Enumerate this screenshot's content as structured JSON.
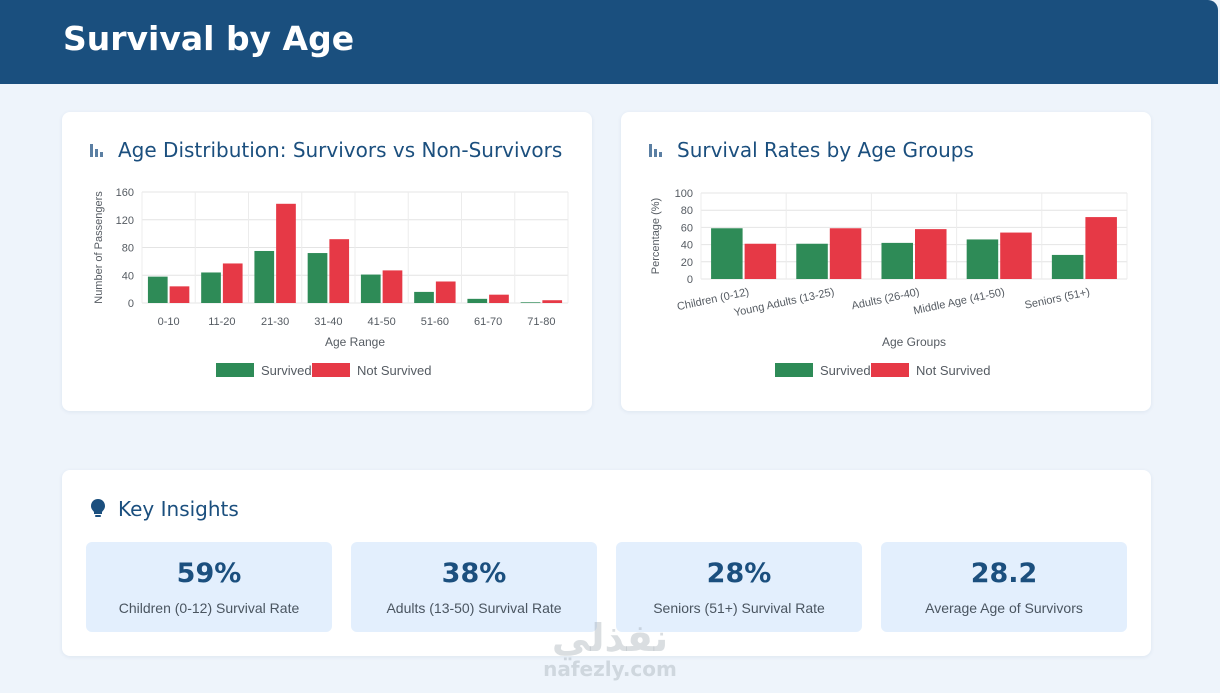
{
  "page": {
    "title": "Survival by Age"
  },
  "charts": {
    "age_distribution": {
      "title": "Age Distribution: Survivors vs Non-Survivors",
      "icon": "bar-chart-icon"
    },
    "age_groups": {
      "title": "Survival Rates by Age Groups",
      "icon": "bar-chart-icon"
    }
  },
  "insights": {
    "title": "Key Insights",
    "icon": "lightbulb-icon",
    "stats": [
      {
        "value": "59%",
        "label": "Children (0-12) Survival Rate"
      },
      {
        "value": "38%",
        "label": "Adults (13-50) Survival Rate"
      },
      {
        "value": "28%",
        "label": "Seniors (51+) Survival Rate"
      },
      {
        "value": "28.2",
        "label": "Average Age of Survivors"
      }
    ]
  },
  "watermark": {
    "arabic": "نفذلي",
    "latin": "nafezly.com"
  },
  "colors": {
    "survived": "#2e8b57",
    "not_survived": "#e63946",
    "header": "#1a4f7e"
  },
  "chart_data": [
    {
      "type": "bar",
      "title": "Age Distribution: Survivors vs Non-Survivors",
      "categories": [
        "0-10",
        "11-20",
        "21-30",
        "31-40",
        "41-50",
        "51-60",
        "61-70",
        "71-80"
      ],
      "series": [
        {
          "name": "Survived",
          "color": "#2e8b57",
          "values": [
            38,
            44,
            75,
            72,
            41,
            16,
            6,
            1
          ]
        },
        {
          "name": "Not Survived",
          "color": "#e63946",
          "values": [
            24,
            57,
            143,
            92,
            47,
            31,
            12,
            4
          ]
        }
      ],
      "xlabel": "Age Range",
      "ylabel": "Number of Passengers",
      "yticks": [
        0,
        40,
        80,
        120,
        160
      ],
      "ylim": [
        0,
        160
      ],
      "grid": true,
      "legend": "bottom"
    },
    {
      "type": "bar",
      "title": "Survival Rates by Age Groups",
      "categories": [
        "Children (0-12)",
        "Young Adults (13-25)",
        "Adults (26-40)",
        "Middle Age (41-50)",
        "Seniors (51+)"
      ],
      "series": [
        {
          "name": "Survived",
          "color": "#2e8b57",
          "values": [
            59,
            41,
            42,
            46,
            28
          ]
        },
        {
          "name": "Not Survived",
          "color": "#e63946",
          "values": [
            41,
            59,
            58,
            54,
            72
          ]
        }
      ],
      "xlabel": "Age Groups",
      "ylabel": "Percentage (%)",
      "yticks": [
        0,
        20,
        40,
        60,
        80,
        100
      ],
      "ylim": [
        0,
        100
      ],
      "grid": true,
      "legend": "bottom"
    }
  ]
}
